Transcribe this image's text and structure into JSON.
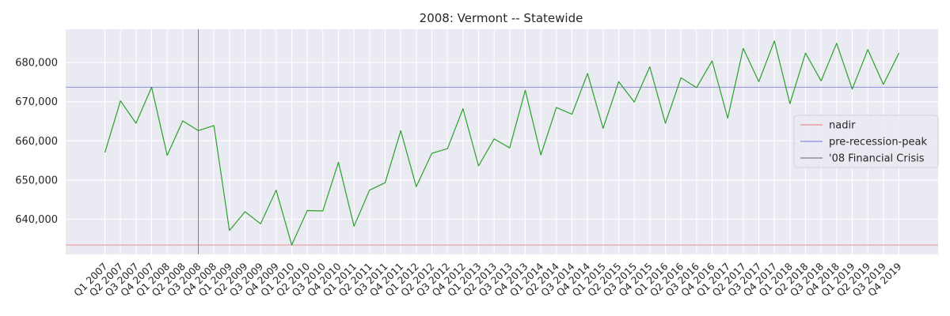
{
  "chart_data": {
    "type": "line",
    "title": "2008: Vermont -- Statewide",
    "xlabel": "",
    "ylabel": "",
    "ylim": [
      631000,
      688500
    ],
    "yticks": [
      640000,
      650000,
      660000,
      670000,
      680000
    ],
    "ytick_labels": [
      "640,000",
      "650,000",
      "660,000",
      "670,000",
      "680,000"
    ],
    "grid": true,
    "legend_position": "right",
    "categories": [
      "Q1 2007",
      "Q2 2007",
      "Q3 2007",
      "Q4 2007",
      "Q1 2008",
      "Q2 2008",
      "Q3 2008",
      "Q4 2008",
      "Q1 2009",
      "Q2 2009",
      "Q3 2009",
      "Q4 2009",
      "Q1 2010",
      "Q2 2010",
      "Q3 2010",
      "Q4 2010",
      "Q1 2011",
      "Q2 2011",
      "Q3 2011",
      "Q4 2011",
      "Q1 2012",
      "Q2 2012",
      "Q3 2012",
      "Q4 2012",
      "Q1 2013",
      "Q2 2013",
      "Q3 2013",
      "Q4 2013",
      "Q1 2014",
      "Q2 2014",
      "Q3 2014",
      "Q4 2014",
      "Q1 2015",
      "Q2 2015",
      "Q3 2015",
      "Q4 2015",
      "Q1 2016",
      "Q2 2016",
      "Q3 2016",
      "Q4 2016",
      "Q1 2017",
      "Q2 2017",
      "Q3 2017",
      "Q4 2017",
      "Q1 2018",
      "Q2 2018",
      "Q3 2018",
      "Q4 2018",
      "Q1 2019",
      "Q2 2019",
      "Q3 2019",
      "Q4 2019"
    ],
    "series": [
      {
        "color": "#2ca02c",
        "values": [
          657000,
          670200,
          664500,
          673700,
          656300,
          665100,
          662600,
          663900,
          637100,
          641900,
          638800,
          647400,
          633400,
          642200,
          642100,
          654500,
          638200,
          647400,
          649300,
          662600,
          648300,
          656800,
          658000,
          668200,
          653600,
          660500,
          658200,
          672900,
          656400,
          668500,
          666800,
          677200,
          663200,
          675100,
          669900,
          678900,
          664500,
          676100,
          673600,
          680400,
          665800,
          683600,
          675100,
          685500,
          669500,
          682400,
          675300,
          684900,
          673200,
          683300,
          674400,
          682400
        ]
      }
    ],
    "reference_lines": [
      {
        "label": "nadir",
        "orientation": "horizontal",
        "value": 633400,
        "color": "#e8918f"
      },
      {
        "label": "pre-recession-peak",
        "orientation": "horizontal",
        "value": 673700,
        "color": "#8c8ce8"
      },
      {
        "label": "'08 Financial Crisis",
        "orientation": "vertical",
        "category": "Q3 2008",
        "color": "#808080"
      }
    ]
  }
}
